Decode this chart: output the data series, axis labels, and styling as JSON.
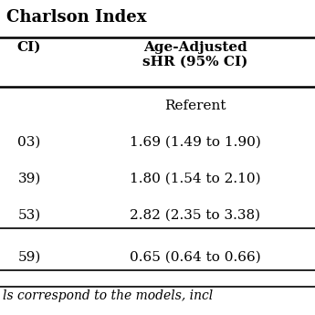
{
  "title": "Charlson Index",
  "col1_header": "CI)",
  "col2_header": "Age-Adjusted\nsHR (95% CI)",
  "rows": [
    {
      "col1": "",
      "col2": "Referent",
      "separator_after": false
    },
    {
      "col1": "03)",
      "col2": "1.69 (1.49 to 1.90)",
      "separator_after": false
    },
    {
      "col1": "39)",
      "col2": "1.80 (1.54 to 2.10)",
      "separator_after": false
    },
    {
      "col1": "53)",
      "col2": "2.82 (2.35 to 3.38)",
      "separator_after": true
    },
    {
      "col1": "59)",
      "col2": "0.65 (0.64 to 0.66)",
      "separator_after": true
    }
  ],
  "footnote": "ls correspond to the models, incl",
  "bg_color": "#ffffff",
  "text_color": "#000000",
  "font_size": 11,
  "title_font_size": 13
}
